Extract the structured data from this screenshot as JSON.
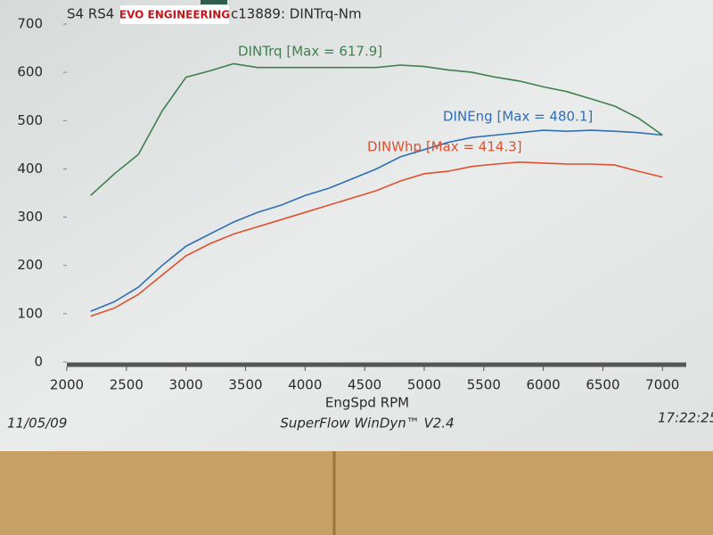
{
  "chart_data": {
    "type": "line",
    "header": "S4 RS4",
    "logo": "EVO ENGINEERING",
    "title": "c13889: DINTrq-Nm",
    "xlabel": "EngSpd  RPM",
    "footer_left": "11/05/09",
    "footer_center": "SuperFlow WinDyn™ V2.4",
    "footer_right": "17:22:25",
    "x": [
      2200,
      2400,
      2600,
      2800,
      3000,
      3200,
      3400,
      3600,
      3800,
      4000,
      4200,
      4400,
      4600,
      4800,
      5000,
      5200,
      5400,
      5600,
      5800,
      6000,
      6200,
      6400,
      6600,
      6800,
      7000
    ],
    "series": [
      {
        "name": "DINTrq [Max = 617.9]",
        "color": "#3f7f4f",
        "values": [
          345,
          390,
          430,
          520,
          590,
          603,
          618,
          610,
          610,
          610,
          610,
          610,
          610,
          615,
          612,
          605,
          600,
          590,
          582,
          570,
          560,
          545,
          530,
          505,
          470
        ]
      },
      {
        "name": "DINEng [Max = 480.1]",
        "color": "#2f6fb5",
        "values": [
          105,
          125,
          155,
          200,
          240,
          265,
          290,
          310,
          325,
          345,
          360,
          380,
          400,
          425,
          440,
          455,
          465,
          470,
          475,
          480,
          478,
          480,
          478,
          475,
          470
        ]
      },
      {
        "name": "DINWhp [Max = 414.3]",
        "color": "#e0502f",
        "values": [
          95,
          112,
          140,
          180,
          220,
          245,
          265,
          280,
          295,
          310,
          325,
          340,
          355,
          375,
          390,
          395,
          405,
          410,
          414,
          412,
          410,
          410,
          408,
          395,
          383
        ]
      }
    ],
    "xlim": [
      2000,
      7200
    ],
    "xticks": [
      2000,
      2500,
      3000,
      3500,
      4000,
      4500,
      5000,
      5500,
      6000,
      6500,
      7000
    ],
    "ylim": [
      0,
      700
    ],
    "yticks": [
      0,
      100,
      200,
      300,
      400,
      500,
      600,
      700
    ]
  }
}
